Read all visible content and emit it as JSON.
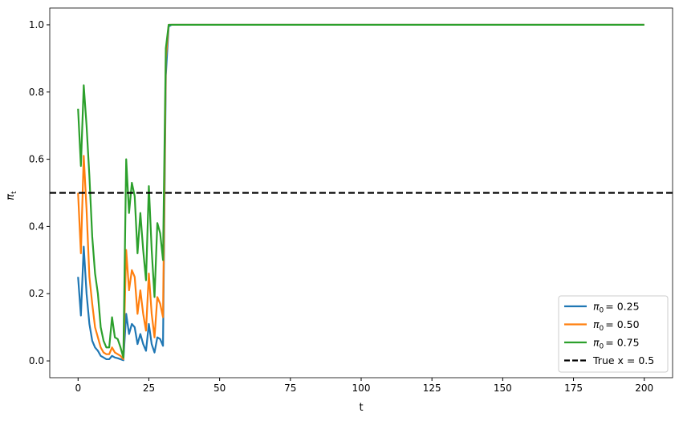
{
  "chart_data": {
    "type": "line",
    "xlabel": "t",
    "ylabel": "π_t",
    "xlim": [
      -10,
      210
    ],
    "ylim": [
      -0.05,
      1.05
    ],
    "xticks": [
      0,
      25,
      50,
      75,
      100,
      125,
      150,
      175,
      200
    ],
    "yticks": [
      "0.0",
      "0.2",
      "0.4",
      "0.6",
      "0.8",
      "1.0"
    ],
    "grid": false,
    "legend_position": "bottom-right",
    "x": [
      0,
      1,
      2,
      3,
      4,
      5,
      6,
      7,
      8,
      9,
      10,
      11,
      12,
      13,
      14,
      15,
      16,
      17,
      18,
      19,
      20,
      21,
      22,
      23,
      24,
      25,
      26,
      27,
      28,
      29,
      30,
      31,
      32,
      33,
      34,
      200
    ],
    "series": [
      {
        "name": "π0 = 0.25",
        "color": "#1f77b4",
        "values": [
          0.25,
          0.135,
          0.34,
          0.2,
          0.11,
          0.06,
          0.04,
          0.03,
          0.015,
          0.01,
          0.005,
          0.005,
          0.015,
          0.01,
          0.008,
          0.005,
          0.002,
          0.14,
          0.08,
          0.11,
          0.1,
          0.05,
          0.08,
          0.05,
          0.03,
          0.11,
          0.05,
          0.025,
          0.07,
          0.065,
          0.045,
          0.85,
          0.995,
          1.0,
          1.0,
          1.0
        ]
      },
      {
        "name": "π0 = 0.50",
        "color": "#ff7f0e",
        "values": [
          0.5,
          0.32,
          0.61,
          0.45,
          0.25,
          0.17,
          0.1,
          0.07,
          0.04,
          0.025,
          0.02,
          0.02,
          0.04,
          0.025,
          0.02,
          0.015,
          0.005,
          0.33,
          0.21,
          0.27,
          0.25,
          0.14,
          0.21,
          0.14,
          0.09,
          0.26,
          0.14,
          0.07,
          0.19,
          0.17,
          0.13,
          0.9,
          1.0,
          1.0,
          1.0,
          1.0
        ]
      },
      {
        "name": "π0 = 0.75",
        "color": "#2ca02c",
        "values": [
          0.75,
          0.58,
          0.82,
          0.7,
          0.55,
          0.37,
          0.26,
          0.2,
          0.1,
          0.06,
          0.04,
          0.04,
          0.13,
          0.07,
          0.065,
          0.04,
          0.01,
          0.6,
          0.44,
          0.53,
          0.49,
          0.32,
          0.44,
          0.33,
          0.24,
          0.52,
          0.33,
          0.19,
          0.41,
          0.38,
          0.3,
          0.93,
          1.0,
          1.0,
          1.0,
          1.0
        ]
      }
    ],
    "hline": {
      "name": "True x = 0.5",
      "value": 0.5,
      "color": "#000000",
      "style": "dashed"
    },
    "legend": {
      "labels": [
        "π",
        "0",
        "= 0.25",
        "π",
        "0",
        "= 0.50",
        "π",
        "0",
        "= 0.75",
        "True x = 0.5"
      ]
    }
  }
}
